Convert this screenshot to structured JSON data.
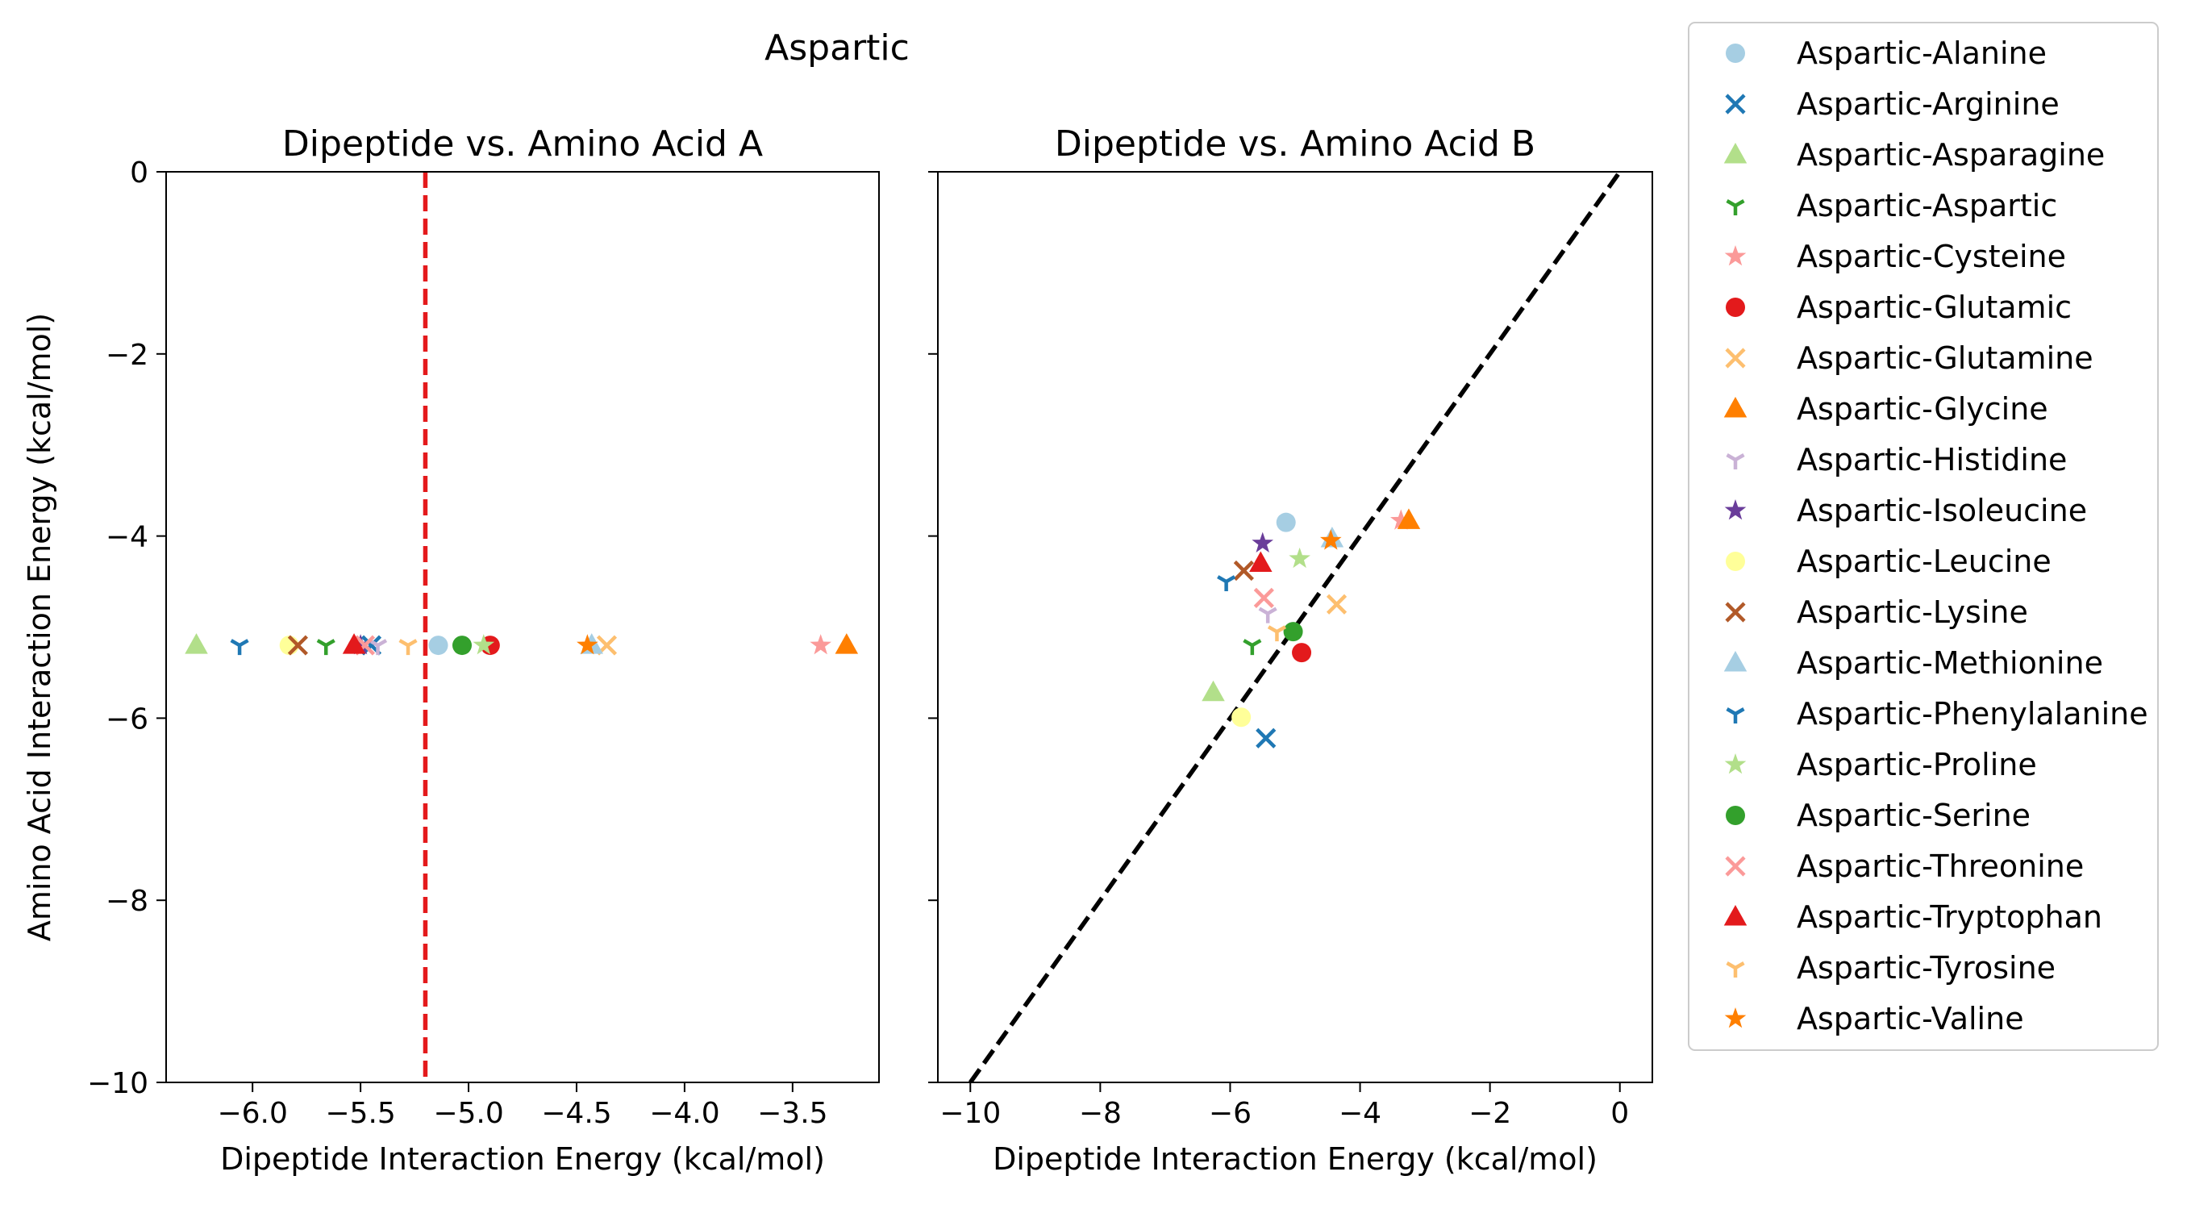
{
  "figure": {
    "suptitle": "Aspartic"
  },
  "chart_data": [
    {
      "type": "scatter",
      "title": "Dipeptide vs. Amino Acid A",
      "xlabel": "Dipeptide Interaction Energy (kcal/mol)",
      "ylabel": "Amino Acid Interaction Energy (kcal/mol)",
      "xlim": [
        -6.4,
        -3.1
      ],
      "ylim": [
        -10,
        0
      ],
      "xticks": [
        -6.0,
        -5.5,
        -5.0,
        -4.5,
        -4.0,
        -3.5
      ],
      "xtick_labels": [
        "−6.0",
        "−5.5",
        "−5.0",
        "−4.5",
        "−4.0",
        "−3.5"
      ],
      "yticks": [
        0,
        -2,
        -4,
        -6,
        -8,
        -10
      ],
      "ytick_labels": [
        "0",
        "−2",
        "−4",
        "−6",
        "−8",
        "−10"
      ],
      "reference_line": {
        "kind": "vertical",
        "x": -5.2,
        "color": "#e41a1c",
        "style": "dashed"
      },
      "points": [
        {
          "series": "Aspartic-Alanine",
          "x": -5.14,
          "y": -5.2
        },
        {
          "series": "Aspartic-Arginine",
          "x": -5.45,
          "y": -5.2
        },
        {
          "series": "Aspartic-Asparagine",
          "x": -6.26,
          "y": -5.2
        },
        {
          "series": "Aspartic-Aspartic",
          "x": -5.66,
          "y": -5.2
        },
        {
          "series": "Aspartic-Cysteine",
          "x": -3.37,
          "y": -5.2
        },
        {
          "series": "Aspartic-Glutamic",
          "x": -4.9,
          "y": -5.2
        },
        {
          "series": "Aspartic-Glutamine",
          "x": -4.36,
          "y": -5.2
        },
        {
          "series": "Aspartic-Glycine",
          "x": -3.25,
          "y": -5.2
        },
        {
          "series": "Aspartic-Histidine",
          "x": -5.42,
          "y": -5.2
        },
        {
          "series": "Aspartic-Isoleucine",
          "x": -5.5,
          "y": -5.2
        },
        {
          "series": "Aspartic-Leucine",
          "x": -5.83,
          "y": -5.2
        },
        {
          "series": "Aspartic-Lysine",
          "x": -5.79,
          "y": -5.2
        },
        {
          "series": "Aspartic-Methionine",
          "x": -4.43,
          "y": -5.2
        },
        {
          "series": "Aspartic-Phenylalanine",
          "x": -6.06,
          "y": -5.2
        },
        {
          "series": "Aspartic-Proline",
          "x": -4.93,
          "y": -5.2
        },
        {
          "series": "Aspartic-Serine",
          "x": -5.03,
          "y": -5.2
        },
        {
          "series": "Aspartic-Threonine",
          "x": -5.48,
          "y": -5.2
        },
        {
          "series": "Aspartic-Tryptophan",
          "x": -5.53,
          "y": -5.2
        },
        {
          "series": "Aspartic-Tyrosine",
          "x": -5.28,
          "y": -5.2
        },
        {
          "series": "Aspartic-Valine",
          "x": -4.45,
          "y": -5.2
        }
      ]
    },
    {
      "type": "scatter",
      "title": "Dipeptide vs. Amino Acid B",
      "xlabel": "Dipeptide Interaction Energy (kcal/mol)",
      "ylabel": "",
      "xlim": [
        -10.5,
        0.5
      ],
      "ylim": [
        -10,
        0
      ],
      "xticks": [
        -10,
        -8,
        -6,
        -4,
        -2,
        0
      ],
      "xtick_labels": [
        "−10",
        "−8",
        "−6",
        "−4",
        "−2",
        "0"
      ],
      "yticks": [
        0,
        -2,
        -4,
        -6,
        -8,
        -10
      ],
      "reference_line": {
        "kind": "diagonal",
        "from": [
          -10,
          -10
        ],
        "to": [
          0,
          0
        ],
        "color": "#000000",
        "style": "dashed"
      },
      "points": [
        {
          "series": "Aspartic-Alanine",
          "x": -5.14,
          "y": -3.85
        },
        {
          "series": "Aspartic-Arginine",
          "x": -5.45,
          "y": -6.22
        },
        {
          "series": "Aspartic-Asparagine",
          "x": -6.26,
          "y": -5.72
        },
        {
          "series": "Aspartic-Aspartic",
          "x": -5.66,
          "y": -5.2
        },
        {
          "series": "Aspartic-Cysteine",
          "x": -3.37,
          "y": -3.83
        },
        {
          "series": "Aspartic-Glutamic",
          "x": -4.9,
          "y": -5.28
        },
        {
          "series": "Aspartic-Glutamine",
          "x": -4.36,
          "y": -4.75
        },
        {
          "series": "Aspartic-Glycine",
          "x": -3.25,
          "y": -3.83
        },
        {
          "series": "Aspartic-Histidine",
          "x": -5.42,
          "y": -4.85
        },
        {
          "series": "Aspartic-Isoleucine",
          "x": -5.5,
          "y": -4.08
        },
        {
          "series": "Aspartic-Leucine",
          "x": -5.83,
          "y": -5.99
        },
        {
          "series": "Aspartic-Lysine",
          "x": -5.79,
          "y": -4.38
        },
        {
          "series": "Aspartic-Methionine",
          "x": -4.43,
          "y": -4.03
        },
        {
          "series": "Aspartic-Phenylalanine",
          "x": -6.06,
          "y": -4.5
        },
        {
          "series": "Aspartic-Proline",
          "x": -4.93,
          "y": -4.25
        },
        {
          "series": "Aspartic-Serine",
          "x": -5.03,
          "y": -5.05
        },
        {
          "series": "Aspartic-Threonine",
          "x": -5.48,
          "y": -4.68
        },
        {
          "series": "Aspartic-Tryptophan",
          "x": -5.53,
          "y": -4.3
        },
        {
          "series": "Aspartic-Tyrosine",
          "x": -5.28,
          "y": -5.05
        },
        {
          "series": "Aspartic-Valine",
          "x": -4.45,
          "y": -4.05
        }
      ]
    }
  ],
  "legend": {
    "placement": "outside right",
    "entries": [
      {
        "label": "Aspartic-Alanine",
        "marker": "circle",
        "color": "#a6cee3"
      },
      {
        "label": "Aspartic-Arginine",
        "marker": "x",
        "color": "#1f78b4"
      },
      {
        "label": "Aspartic-Asparagine",
        "marker": "triangle",
        "color": "#b2df8a"
      },
      {
        "label": "Aspartic-Aspartic",
        "marker": "tri_down",
        "color": "#33a02c"
      },
      {
        "label": "Aspartic-Cysteine",
        "marker": "star",
        "color": "#fb9a99"
      },
      {
        "label": "Aspartic-Glutamic",
        "marker": "circle",
        "color": "#e31a1c"
      },
      {
        "label": "Aspartic-Glutamine",
        "marker": "x",
        "color": "#fdbf6f"
      },
      {
        "label": "Aspartic-Glycine",
        "marker": "triangle",
        "color": "#ff7f00"
      },
      {
        "label": "Aspartic-Histidine",
        "marker": "tri_down",
        "color": "#cab2d6"
      },
      {
        "label": "Aspartic-Isoleucine",
        "marker": "star",
        "color": "#6a3d9a"
      },
      {
        "label": "Aspartic-Leucine",
        "marker": "circle",
        "color": "#ffff99"
      },
      {
        "label": "Aspartic-Lysine",
        "marker": "x",
        "color": "#b15928"
      },
      {
        "label": "Aspartic-Methionine",
        "marker": "triangle",
        "color": "#a6cee3"
      },
      {
        "label": "Aspartic-Phenylalanine",
        "marker": "tri_down",
        "color": "#1f78b4"
      },
      {
        "label": "Aspartic-Proline",
        "marker": "star",
        "color": "#b2df8a"
      },
      {
        "label": "Aspartic-Serine",
        "marker": "circle",
        "color": "#33a02c"
      },
      {
        "label": "Aspartic-Threonine",
        "marker": "x",
        "color": "#fb9a99"
      },
      {
        "label": "Aspartic-Tryptophan",
        "marker": "triangle",
        "color": "#e31a1c"
      },
      {
        "label": "Aspartic-Tyrosine",
        "marker": "tri_down",
        "color": "#fdbf6f"
      },
      {
        "label": "Aspartic-Valine",
        "marker": "star",
        "color": "#ff7f00"
      }
    ]
  }
}
